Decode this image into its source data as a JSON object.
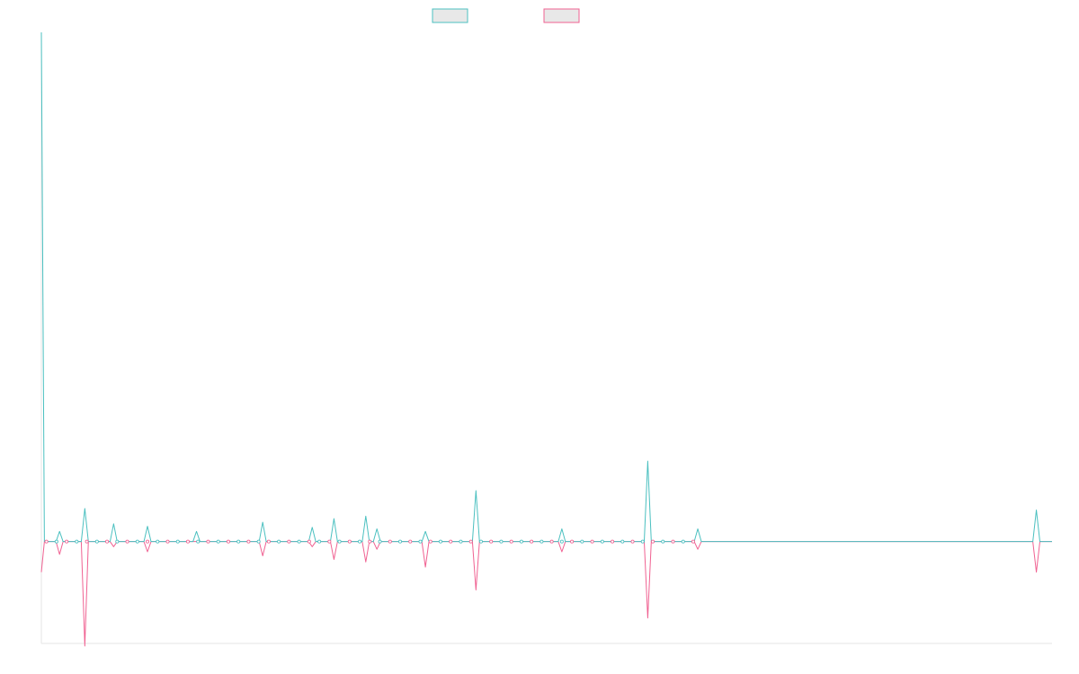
{
  "chart_data": {
    "type": "line",
    "title": "",
    "xlabel": "",
    "ylabel": "",
    "grid": false,
    "legend": "top-center",
    "x": [
      0,
      1,
      2,
      3,
      4,
      5,
      6,
      7,
      8,
      9,
      10,
      11,
      12,
      13,
      14,
      15,
      16,
      17,
      18,
      19,
      20,
      21,
      22,
      23,
      24,
      25,
      26,
      27,
      28,
      29,
      30,
      31,
      32,
      33,
      34,
      35,
      36,
      37,
      38,
      39,
      40,
      41,
      42,
      43,
      44,
      45,
      46,
      47,
      48,
      49,
      50,
      51,
      52,
      53,
      54,
      55,
      56,
      57,
      58,
      59,
      60,
      61,
      62,
      63,
      64,
      65,
      66,
      67,
      68,
      69,
      70,
      71,
      72,
      73,
      74,
      75,
      76,
      77,
      78,
      79,
      80,
      81,
      82,
      83,
      84,
      85,
      86,
      87,
      88,
      89,
      90,
      91,
      92,
      93,
      94,
      95,
      96,
      97,
      98,
      99,
      100,
      101,
      102,
      103,
      104,
      105,
      106,
      107,
      108,
      109,
      110,
      111,
      112,
      113,
      114,
      115,
      116,
      117,
      118,
      119,
      120,
      121,
      122,
      123,
      124,
      125,
      126,
      127,
      128,
      129,
      130,
      131,
      132,
      133,
      134,
      135,
      136,
      137,
      138,
      139,
      140,
      141,
      142,
      143,
      144,
      145,
      146,
      147,
      148,
      149,
      150,
      151,
      152,
      153,
      154,
      155,
      156,
      157,
      158,
      159,
      160,
      161,
      162,
      163,
      164,
      165,
      166,
      167,
      168,
      169,
      170,
      171,
      172,
      173,
      174,
      175,
      176,
      177,
      178,
      179,
      180,
      181,
      182,
      183,
      184,
      185,
      186,
      187,
      188,
      189,
      190,
      191,
      192,
      193,
      194,
      195,
      196,
      197,
      198,
      199,
      200
    ],
    "xlim": [
      0,
      200
    ],
    "ylim": [
      -0.2,
      1.0
    ],
    "series": [
      {
        "name": "",
        "color": "#4bc0c0",
        "values": [
          1.0,
          0.0,
          0.0,
          0.0,
          0.02,
          0.015,
          0.0,
          0.0,
          0.04,
          0.065,
          0.0,
          0.0,
          0.01,
          0.0,
          0.0,
          0.035,
          0.0,
          0.0,
          0.0,
          0.0,
          0.0,
          0.0,
          0.03,
          0.0,
          0.0,
          0.0,
          0.0,
          0.0,
          0.0,
          0.0,
          0.0,
          0.0,
          0.0,
          0.02,
          0.0,
          0.0,
          0.0,
          0.0,
          0.0,
          0.0,
          0.0,
          0.0,
          0.0,
          0.0,
          0.0,
          0.0,
          0.0,
          0.0,
          0.0,
          0.0,
          0.0,
          0.0,
          0.0,
          0.0,
          0.0,
          0.0,
          0.0,
          0.0,
          0.0,
          0.0,
          0.0,
          0.0,
          0.03,
          0.0,
          0.0,
          0.0,
          0.0,
          0.045,
          0.0,
          0.0,
          0.0,
          0.02,
          0.0,
          0.05,
          0.0,
          0.025,
          0.0,
          0.0,
          0.0,
          0.0,
          0.0,
          0.0,
          0.0,
          0.0,
          0.02,
          0.0,
          0.025,
          0.02,
          0.0,
          0.0,
          0.0,
          0.0,
          0.0,
          0.0,
          0.0,
          0.1,
          0.0,
          0.0,
          0.0,
          0.0,
          0.0,
          0.0,
          0.0,
          0.0,
          0.0,
          0.0,
          0.0,
          0.0,
          0.0,
          0.0,
          0.0,
          0.0,
          0.025,
          0.0,
          0.0,
          0.0,
          0.0,
          0.0,
          0.0,
          0.0,
          0.0,
          0.0,
          0.0,
          0.0,
          0.0,
          0.0,
          0.0,
          0.0,
          0.0,
          0.0,
          0.0,
          0.0,
          0.0,
          0.0,
          0.0,
          0.0,
          0.0,
          0.0,
          0.0,
          0.0,
          0.0,
          0.0,
          0.0,
          0.0,
          0.0,
          0.0,
          0.0,
          0.0,
          0.0,
          0.0,
          0.0,
          0.0,
          0.0,
          0.0,
          0.0,
          0.0,
          0.0,
          0.0,
          0.0,
          0.0,
          0.0,
          0.0,
          0.0,
          0.0,
          0.0,
          0.0,
          0.0,
          0.0,
          0.0,
          0.0,
          0.0,
          0.0,
          0.0,
          0.0,
          0.0,
          0.0,
          0.0,
          0.0,
          0.0,
          0.0,
          0.0,
          0.0,
          0.0,
          0.0,
          0.0,
          0.0,
          0.0,
          0.0,
          0.0,
          0.0,
          0.0,
          0.0,
          0.0,
          0.0,
          0.0,
          0.0,
          0.0,
          0.0,
          0.0,
          0.0,
          0.0
        ]
      },
      {
        "name": "",
        "color": "#f06292",
        "values": [
          -0.06,
          0.0,
          0.0,
          0.0,
          -0.025,
          -0.015,
          0.0,
          0.0,
          0.0,
          -0.205,
          0.0,
          0.0,
          0.0,
          0.0,
          0.0,
          -0.01,
          0.0,
          0.0,
          0.0,
          0.0,
          0.0,
          0.0,
          -0.02,
          0.0,
          0.0,
          0.0,
          0.0,
          0.0,
          0.0,
          0.0,
          0.0,
          0.0,
          0.0,
          0.0,
          0.0,
          0.0,
          0.0,
          0.0,
          0.0,
          0.0,
          0.0,
          0.0,
          0.0,
          0.0,
          0.0,
          0.0,
          0.0,
          0.0,
          0.0,
          0.0,
          0.0,
          0.0,
          0.0,
          0.0,
          0.0,
          0.0,
          0.0,
          0.0,
          0.0,
          0.0,
          0.0,
          0.0,
          -0.02,
          0.0,
          0.0,
          0.0,
          0.0,
          -0.035,
          0.0,
          0.0,
          0.0,
          -0.01,
          0.0,
          -0.04,
          0.0,
          -0.015,
          0.0,
          0.0,
          0.0,
          0.0,
          0.0,
          0.0,
          0.0,
          0.0,
          -0.05,
          0.0,
          0.0,
          0.0,
          0.0,
          0.0,
          0.0,
          0.0,
          0.0,
          0.0,
          0.0,
          -0.095,
          0.0,
          0.0,
          0.0,
          0.0,
          0.0,
          0.0,
          0.0,
          0.0,
          0.0,
          0.0,
          0.0,
          0.0,
          0.0,
          0.0,
          0.0,
          0.0,
          -0.02,
          0.0,
          0.0,
          0.0,
          0.0,
          0.0,
          0.0,
          0.0,
          0.0,
          0.0,
          0.0,
          0.0,
          0.0,
          0.0,
          0.0,
          0.0,
          0.0,
          0.0,
          0.0,
          0.0,
          0.0,
          0.0,
          0.0,
          0.0,
          0.0,
          0.0,
          0.0,
          0.0,
          0.0,
          0.0,
          0.0,
          0.0,
          0.0,
          0.0,
          0.0,
          0.0,
          0.0,
          0.0,
          0.0,
          0.0,
          0.0,
          0.0,
          0.0,
          0.0,
          0.0,
          0.0,
          0.0,
          0.0,
          0.0,
          0.0,
          0.0,
          0.0,
          0.0,
          0.0,
          0.0,
          0.0,
          0.0,
          0.0,
          0.0,
          0.0,
          0.0,
          0.0,
          0.0,
          0.0,
          0.0,
          0.0,
          0.0,
          0.0,
          0.0,
          0.0,
          0.0,
          0.0,
          0.0,
          0.0,
          0.0,
          0.0,
          0.0,
          0.0,
          0.0,
          0.0,
          0.0,
          0.0,
          0.0,
          0.0,
          0.0,
          0.0,
          0.0,
          0.0,
          0.0
        ]
      }
    ],
    "spikes": [
      {
        "x": 3.6,
        "teal": 0.02,
        "pink": -0.025
      },
      {
        "x": 8.6,
        "teal": 0.065,
        "pink": -0.205
      },
      {
        "x": 14.3,
        "teal": 0.035,
        "pink": -0.01
      },
      {
        "x": 21.0,
        "teal": 0.03,
        "pink": -0.02
      },
      {
        "x": 30.7,
        "teal": 0.02,
        "pink": 0.0
      },
      {
        "x": 43.8,
        "teal": 0.038,
        "pink": -0.028
      },
      {
        "x": 53.6,
        "teal": 0.028,
        "pink": -0.01
      },
      {
        "x": 57.9,
        "teal": 0.045,
        "pink": -0.035
      },
      {
        "x": 64.2,
        "teal": 0.05,
        "pink": -0.04
      },
      {
        "x": 66.4,
        "teal": 0.025,
        "pink": -0.015
      },
      {
        "x": 76.0,
        "teal": 0.02,
        "pink": -0.05
      },
      {
        "x": 86.0,
        "teal": 0.1,
        "pink": -0.095
      },
      {
        "x": 103.0,
        "teal": 0.025,
        "pink": -0.02
      },
      {
        "x": 120.0,
        "teal": 0.158,
        "pink": -0.15
      },
      {
        "x": 129.9,
        "teal": 0.025,
        "pink": -0.015
      },
      {
        "x": 196.9,
        "teal": 0.062,
        "pink": -0.06
      }
    ]
  }
}
